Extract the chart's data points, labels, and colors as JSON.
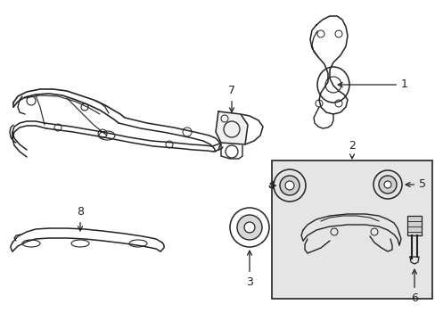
{
  "background_color": "#ffffff",
  "line_color": "#222222",
  "box_fill_color": "#e8e8e8",
  "fig_width": 4.89,
  "fig_height": 3.6,
  "dpi": 100
}
